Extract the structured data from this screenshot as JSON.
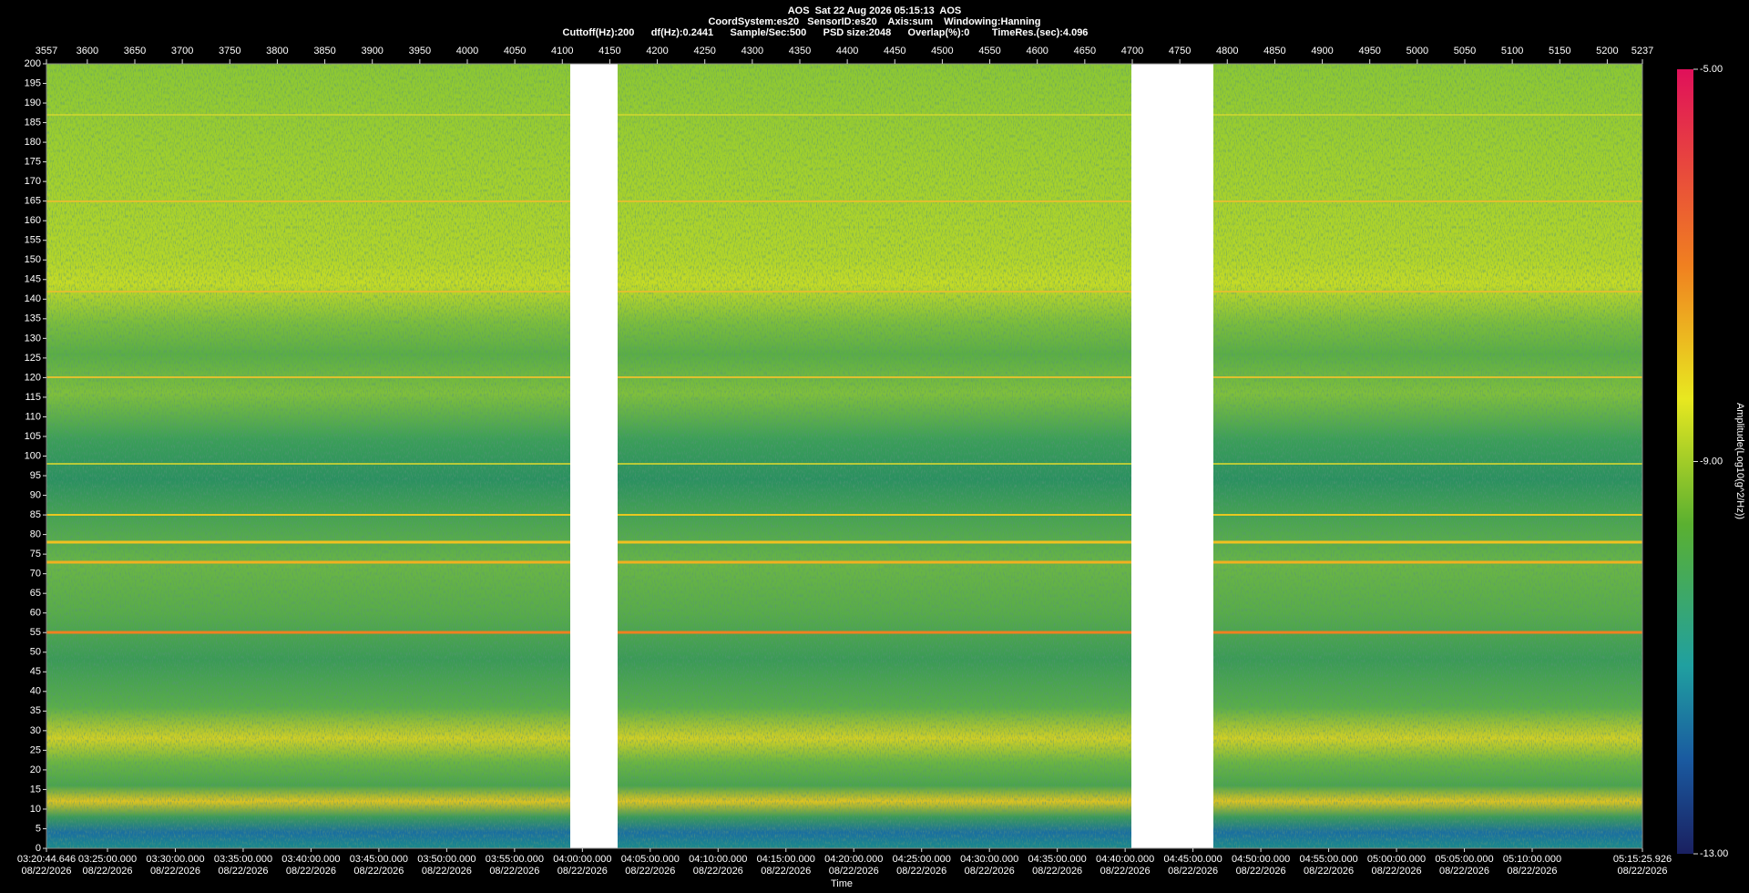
{
  "header": {
    "lines": [
      "AOS  Sat 22 Aug 2026 05:15:13  AOS",
      "CoordSystem:es20   SensorID:es20    Axis:sum    Windowing:Hanning",
      "Cuttoff(Hz):200      df(Hz):0.2441      Sample/Sec:500      PSD size:2048      Overlap(%):0        TimeRes.(sec):4.096"
    ]
  },
  "top_axis": {
    "ticks": [
      3557,
      3600,
      3650,
      3700,
      3750,
      3800,
      3850,
      3900,
      3950,
      4000,
      4050,
      4100,
      4150,
      4200,
      4250,
      4300,
      4350,
      4400,
      4450,
      4500,
      4550,
      4600,
      4650,
      4700,
      4750,
      4800,
      4850,
      4900,
      4950,
      5000,
      5050,
      5100,
      5150,
      5200,
      5237
    ]
  },
  "y_axis": {
    "ticks": [
      0,
      5,
      10,
      15,
      20,
      25,
      30,
      35,
      40,
      45,
      50,
      55,
      60,
      65,
      70,
      75,
      80,
      85,
      90,
      95,
      100,
      105,
      110,
      115,
      120,
      125,
      130,
      135,
      140,
      145,
      150,
      155,
      160,
      165,
      170,
      175,
      180,
      185,
      190,
      195,
      200
    ]
  },
  "time_axis": {
    "title": "Time",
    "ticks": [
      {
        "time": "03:20:44.646",
        "date": "08/22/2026"
      },
      {
        "time": "03:25:00.000",
        "date": "08/22/2026"
      },
      {
        "time": "03:30:00.000",
        "date": "08/22/2026"
      },
      {
        "time": "03:35:00.000",
        "date": "08/22/2026"
      },
      {
        "time": "03:40:00.000",
        "date": "08/22/2026"
      },
      {
        "time": "03:45:00.000",
        "date": "08/22/2026"
      },
      {
        "time": "03:50:00.000",
        "date": "08/22/2026"
      },
      {
        "time": "03:55:00.000",
        "date": "08/22/2026"
      },
      {
        "time": "04:00:00.000",
        "date": "08/22/2026"
      },
      {
        "time": "04:05:00.000",
        "date": "08/22/2026"
      },
      {
        "time": "04:10:00.000",
        "date": "08/22/2026"
      },
      {
        "time": "04:15:00.000",
        "date": "08/22/2026"
      },
      {
        "time": "04:20:00.000",
        "date": "08/22/2026"
      },
      {
        "time": "04:25:00.000",
        "date": "08/22/2026"
      },
      {
        "time": "04:30:00.000",
        "date": "08/22/2026"
      },
      {
        "time": "04:35:00.000",
        "date": "08/22/2026"
      },
      {
        "time": "04:40:00.000",
        "date": "08/22/2026"
      },
      {
        "time": "04:45:00.000",
        "date": "08/22/2026"
      },
      {
        "time": "04:50:00.000",
        "date": "08/22/2026"
      },
      {
        "time": "04:55:00.000",
        "date": "08/22/2026"
      },
      {
        "time": "05:00:00.000",
        "date": "08/22/2026"
      },
      {
        "time": "05:05:00.000",
        "date": "08/22/2026"
      },
      {
        "time": "05:10:00.000",
        "date": "08/22/2026"
      },
      {
        "time": "05:15:25.926",
        "date": "08/22/2026"
      }
    ]
  },
  "colorbar": {
    "title": "Amplitude(Log10(g^2/Hz))",
    "labels": [
      "-5.00",
      "-9.00",
      "-13.00"
    ]
  }
}
